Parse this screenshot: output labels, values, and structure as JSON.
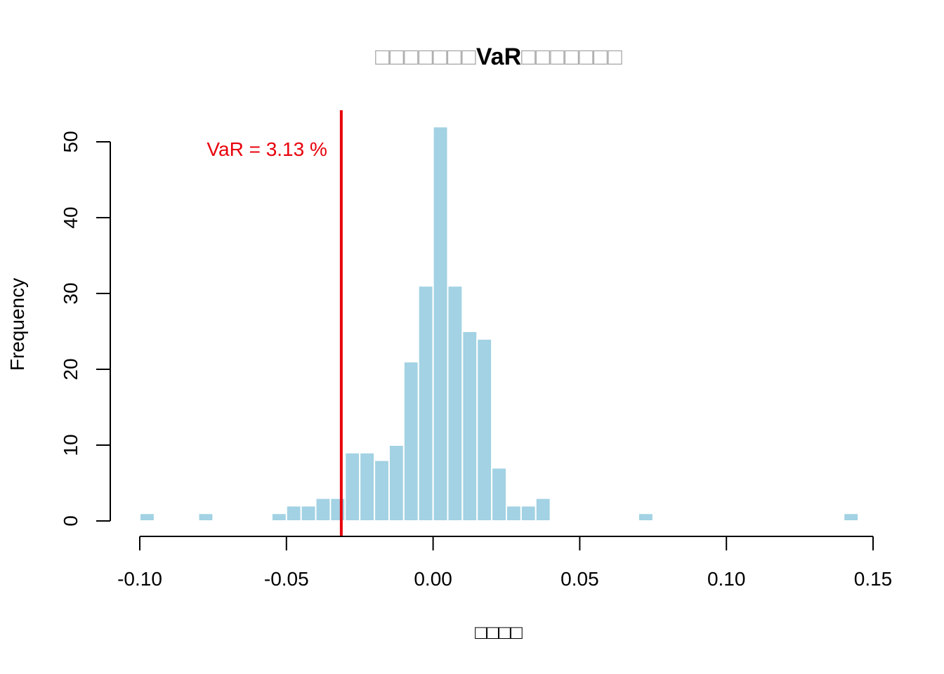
{
  "chart_data": {
    "type": "bar",
    "subtype": "histogram",
    "title": "□□□□□□□VaR□□□□□□□",
    "title_parts": {
      "prefix": "□□□□□□□",
      "highlight": "VaR",
      "suffix": "□□□□□□□"
    },
    "xlabel": "□□□□",
    "ylabel": "Frequency",
    "xlim": [
      -0.1,
      0.15
    ],
    "ylim": [
      0,
      50
    ],
    "x_ticks": [
      -0.1,
      -0.05,
      0.0,
      0.05,
      0.1,
      0.15
    ],
    "x_tick_labels": [
      "-0.10",
      "-0.05",
      "0.00",
      "0.05",
      "0.10",
      "0.15"
    ],
    "y_ticks": [
      0,
      10,
      20,
      30,
      40,
      50
    ],
    "y_tick_labels": [
      "0",
      "10",
      "20",
      "30",
      "40",
      "50"
    ],
    "bin_width": 0.005,
    "bins": [
      {
        "x0": -0.1,
        "x1": -0.095,
        "count": 1
      },
      {
        "x0": -0.08,
        "x1": -0.075,
        "count": 1
      },
      {
        "x0": -0.055,
        "x1": -0.05,
        "count": 1
      },
      {
        "x0": -0.05,
        "x1": -0.045,
        "count": 2
      },
      {
        "x0": -0.045,
        "x1": -0.04,
        "count": 2
      },
      {
        "x0": -0.04,
        "x1": -0.035,
        "count": 3
      },
      {
        "x0": -0.035,
        "x1": -0.03,
        "count": 3
      },
      {
        "x0": -0.03,
        "x1": -0.025,
        "count": 9
      },
      {
        "x0": -0.025,
        "x1": -0.02,
        "count": 9
      },
      {
        "x0": -0.02,
        "x1": -0.015,
        "count": 8
      },
      {
        "x0": -0.015,
        "x1": -0.01,
        "count": 10
      },
      {
        "x0": -0.01,
        "x1": -0.005,
        "count": 21
      },
      {
        "x0": -0.005,
        "x1": 0.0,
        "count": 31
      },
      {
        "x0": 0.0,
        "x1": 0.005,
        "count": 52
      },
      {
        "x0": 0.005,
        "x1": 0.01,
        "count": 31
      },
      {
        "x0": 0.01,
        "x1": 0.015,
        "count": 25
      },
      {
        "x0": 0.015,
        "x1": 0.02,
        "count": 24
      },
      {
        "x0": 0.02,
        "x1": 0.025,
        "count": 7
      },
      {
        "x0": 0.025,
        "x1": 0.03,
        "count": 2
      },
      {
        "x0": 0.03,
        "x1": 0.035,
        "count": 2
      },
      {
        "x0": 0.035,
        "x1": 0.04,
        "count": 3
      },
      {
        "x0": 0.07,
        "x1": 0.075,
        "count": 1
      },
      {
        "x0": 0.14,
        "x1": 0.145,
        "count": 1
      }
    ],
    "var_line": {
      "x": -0.0313,
      "label": "VaR = 3.13 %"
    },
    "colors": {
      "bar_fill": "#A2D2E3",
      "bar_border": "#ffffff",
      "var_line": "#E8000B",
      "axis": "#000000",
      "placeholder_text": "#a6a6a6"
    },
    "grid": false,
    "legend": "none"
  }
}
